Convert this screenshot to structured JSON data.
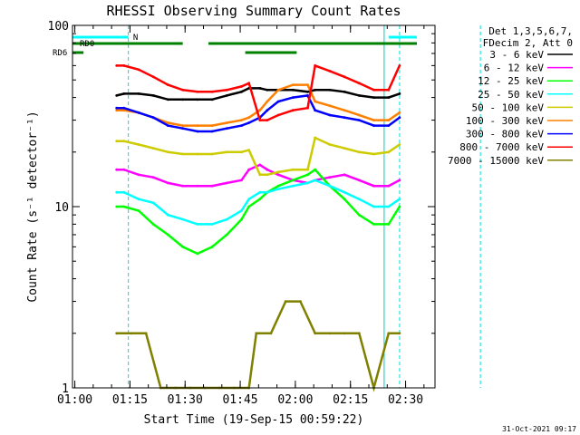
{
  "chart_data": {
    "type": "line",
    "title": "RHESSI Observing Summary Count Rates",
    "xlabel": "Start Time (19-Sep-15 00:59:22)",
    "ylabel": "Count Rate (s⁻¹ detector⁻¹)",
    "x_unit": "minutes",
    "xlim": [
      "00:59:22",
      "02:38:00"
    ],
    "ylim": [
      1,
      100
    ],
    "y_scale": "log",
    "x_ticks": [
      "01:00",
      "01:15",
      "01:30",
      "01:45",
      "02:00",
      "02:15",
      "02:30"
    ],
    "y_ticks": [
      "1",
      "10",
      "100"
    ],
    "grid": false,
    "legend_placement": "right",
    "legend_header": [
      "Det 1,3,5,6,7,",
      "FDecim 2, Att 0"
    ],
    "footer_date": "31-Oct-2021 09:17",
    "flag_labels": [
      "N",
      "RD0",
      "RD6"
    ],
    "vertical_markers_min": [
      15.2,
      84.8,
      89.0,
      111.0
    ],
    "series": [
      {
        "name": "3 - 6 keV",
        "color": "#000000",
        "x": [
          12,
          14,
          18,
          22,
          26,
          30,
          34,
          38,
          42,
          46,
          48,
          51,
          53,
          56,
          60,
          64,
          66,
          70,
          74,
          78,
          82,
          86,
          89
        ],
        "y": [
          41,
          42,
          42,
          41,
          39,
          39,
          39,
          39,
          41,
          43,
          45,
          45,
          44,
          44,
          44,
          43,
          44,
          44,
          43,
          41,
          40,
          40,
          42
        ]
      },
      {
        "name": "6 - 12 keV",
        "color": "#ff00ff",
        "x": [
          12,
          14,
          18,
          22,
          26,
          30,
          34,
          38,
          42,
          46,
          48,
          51,
          53,
          56,
          60,
          64,
          66,
          70,
          74,
          78,
          82,
          86,
          89
        ],
        "y": [
          16,
          16,
          15,
          14.5,
          13.5,
          13,
          13,
          13,
          13.5,
          14,
          16,
          17,
          16,
          15,
          14,
          13.5,
          14,
          14.5,
          15,
          14,
          13,
          13,
          14
        ]
      },
      {
        "name": "12 - 25 keV",
        "color": "#00ff00",
        "x": [
          12,
          14,
          18,
          22,
          26,
          30,
          34,
          38,
          42,
          46,
          48,
          51,
          53,
          56,
          60,
          64,
          66,
          70,
          74,
          78,
          82,
          86,
          89
        ],
        "y": [
          10,
          10,
          9.5,
          8,
          7,
          6,
          5.5,
          6,
          7,
          8.5,
          10,
          11,
          12,
          13,
          14,
          15,
          16,
          13,
          11,
          9,
          8,
          8,
          10
        ]
      },
      {
        "name": "25 - 50 keV",
        "color": "#00ffff",
        "x": [
          12,
          14,
          18,
          22,
          26,
          30,
          34,
          38,
          42,
          46,
          48,
          51,
          53,
          56,
          60,
          64,
          66,
          70,
          74,
          78,
          82,
          86,
          89
        ],
        "y": [
          12,
          12,
          11,
          10.5,
          9,
          8.5,
          8,
          8,
          8.5,
          9.5,
          11,
          12,
          12,
          12.5,
          13,
          13.5,
          14,
          13,
          12,
          11,
          10,
          10,
          11
        ]
      },
      {
        "name": "50 - 100 keV",
        "color": "#cccc00",
        "x": [
          12,
          14,
          18,
          22,
          26,
          30,
          34,
          38,
          42,
          46,
          48,
          51,
          53,
          56,
          60,
          64,
          66,
          70,
          74,
          78,
          82,
          86,
          89
        ],
        "y": [
          23,
          23,
          22,
          21,
          20,
          19.5,
          19.5,
          19.5,
          20,
          20,
          20.5,
          15,
          15,
          15.5,
          16,
          16,
          24,
          22,
          21,
          20,
          19.5,
          20,
          22
        ]
      },
      {
        "name": "100 - 300 keV",
        "color": "#ff8000",
        "x": [
          12,
          14,
          18,
          22,
          26,
          30,
          34,
          38,
          42,
          46,
          48,
          51,
          53,
          56,
          60,
          64,
          66,
          70,
          74,
          78,
          82,
          86,
          89
        ],
        "y": [
          34,
          34,
          33,
          31,
          29,
          28,
          28,
          28,
          29,
          30,
          31,
          34,
          38,
          44,
          47,
          47,
          38,
          36,
          34,
          32,
          30,
          30,
          33
        ]
      },
      {
        "name": "300 - 800 keV",
        "color": "#0000ff",
        "x": [
          12,
          14,
          18,
          22,
          26,
          30,
          34,
          38,
          42,
          46,
          48,
          51,
          53,
          56,
          60,
          64,
          66,
          70,
          74,
          78,
          82,
          86,
          89
        ],
        "y": [
          35,
          35,
          33,
          31,
          28,
          27,
          26,
          26,
          27,
          28,
          29,
          31,
          34,
          38,
          40,
          41,
          34,
          32,
          31,
          30,
          28,
          28,
          31
        ]
      },
      {
        "name": "800 - 7000 keV",
        "color": "#ff0000",
        "x": [
          12,
          14,
          18,
          22,
          26,
          30,
          34,
          38,
          42,
          46,
          48,
          51,
          53,
          56,
          60,
          64,
          66,
          70,
          74,
          78,
          82,
          86,
          89
        ],
        "y": [
          60,
          60,
          57,
          52,
          47,
          44,
          43,
          43,
          44,
          46,
          48,
          30,
          30,
          32,
          34,
          35,
          60,
          56,
          52,
          48,
          44,
          44,
          60
        ]
      },
      {
        "name": "7000 - 15000 keV",
        "color": "#808000",
        "x": [
          12,
          16,
          20,
          24,
          28,
          32,
          36,
          40,
          44,
          48,
          50,
          54,
          58,
          62,
          66,
          70,
          74,
          78,
          82,
          86,
          89
        ],
        "y": [
          2,
          2,
          2,
          1,
          1,
          1,
          1,
          1,
          1,
          1,
          2,
          2,
          3,
          3,
          2,
          2,
          2,
          2,
          1,
          2,
          2
        ]
      }
    ]
  }
}
